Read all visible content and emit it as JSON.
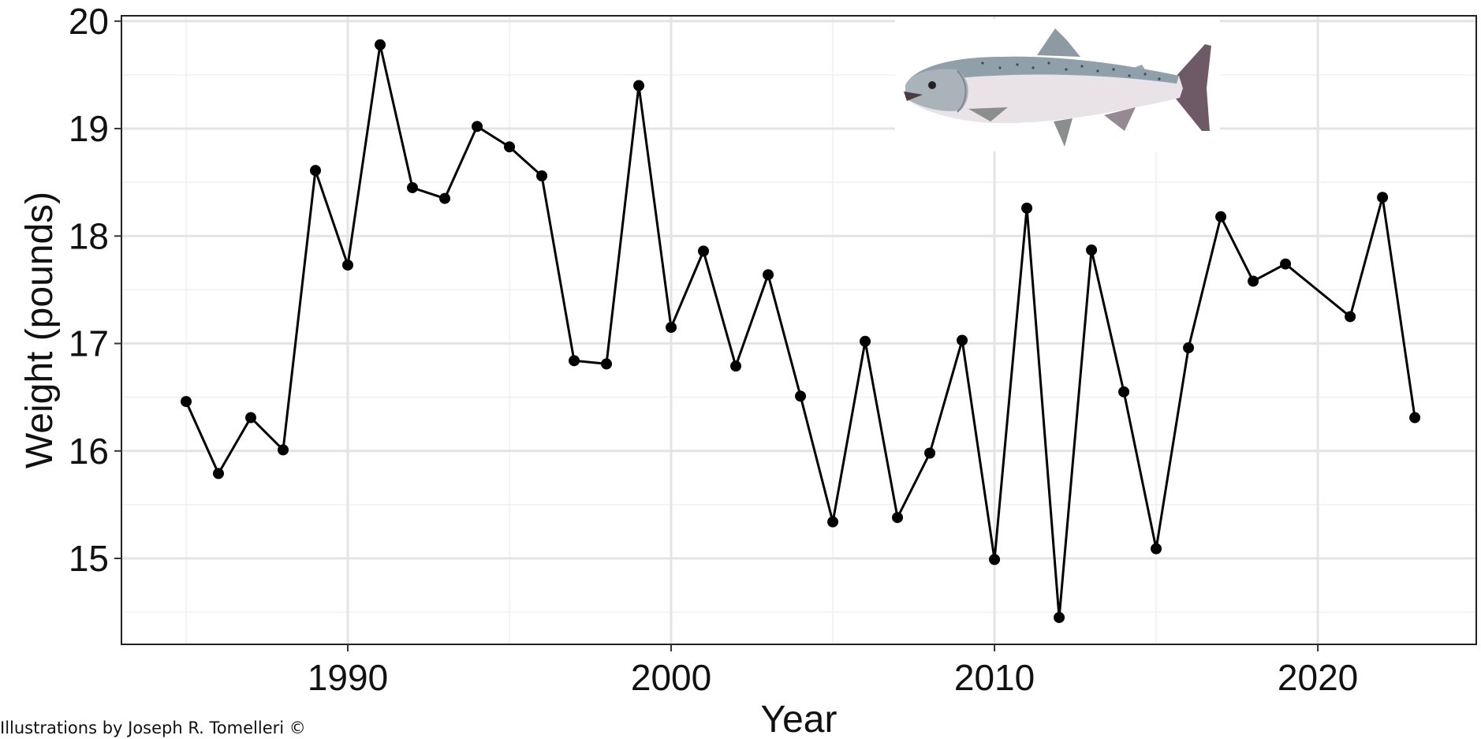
{
  "chart_data": {
    "type": "line",
    "title": "",
    "xlabel": "Year",
    "ylabel": "Weight (pounds)",
    "xlim": [
      1983.0,
      2024.9
    ],
    "ylim": [
      14.2,
      20.05
    ],
    "x_ticks": [
      1990,
      2000,
      2010,
      2020
    ],
    "y_ticks": [
      15,
      16,
      17,
      18,
      19,
      20
    ],
    "x_minor_gridlines": [
      1985,
      1995,
      2005,
      2015
    ],
    "y_minor_gridlines": [
      14.5,
      15.5,
      16.5,
      17.5,
      18.5,
      19.5
    ],
    "grid": true,
    "legend": "none",
    "series": [
      {
        "color": "#000000",
        "points": [
          {
            "x": 1985,
            "y": 16.46
          },
          {
            "x": 1986,
            "y": 15.79
          },
          {
            "x": 1987,
            "y": 16.31
          },
          {
            "x": 1988,
            "y": 16.01
          },
          {
            "x": 1989,
            "y": 18.61
          },
          {
            "x": 1990,
            "y": 17.73
          },
          {
            "x": 1991,
            "y": 19.78
          },
          {
            "x": 1992,
            "y": 18.45
          },
          {
            "x": 1993,
            "y": 18.35
          },
          {
            "x": 1994,
            "y": 19.02
          },
          {
            "x": 1995,
            "y": 18.83
          },
          {
            "x": 1996,
            "y": 18.56
          },
          {
            "x": 1997,
            "y": 16.84
          },
          {
            "x": 1998,
            "y": 16.81
          },
          {
            "x": 1999,
            "y": 19.4
          },
          {
            "x": 2000,
            "y": 17.15
          },
          {
            "x": 2001,
            "y": 17.86
          },
          {
            "x": 2002,
            "y": 16.79
          },
          {
            "x": 2003,
            "y": 17.64
          },
          {
            "x": 2004,
            "y": 16.51
          },
          {
            "x": 2005,
            "y": 15.34
          },
          {
            "x": 2006,
            "y": 17.02
          },
          {
            "x": 2007,
            "y": 15.38
          },
          {
            "x": 2008,
            "y": 15.98
          },
          {
            "x": 2009,
            "y": 17.03
          },
          {
            "x": 2010,
            "y": 14.99
          },
          {
            "x": 2011,
            "y": 18.26
          },
          {
            "x": 2012,
            "y": 14.45
          },
          {
            "x": 2013,
            "y": 17.87
          },
          {
            "x": 2014,
            "y": 16.55
          },
          {
            "x": 2015,
            "y": 15.09
          },
          {
            "x": 2016,
            "y": 16.96
          },
          {
            "x": 2017,
            "y": 18.18
          },
          {
            "x": 2018,
            "y": 17.58
          },
          {
            "x": 2019,
            "y": 17.74
          },
          {
            "x": 2021,
            "y": 17.25
          },
          {
            "x": 2022,
            "y": 18.36
          },
          {
            "x": 2023,
            "y": 16.31
          }
        ]
      }
    ]
  },
  "illustration": {
    "icon": "king-salmon-illustration",
    "colors": [
      "#8fa0ab",
      "#e9e2e7",
      "#6e5a66"
    ]
  },
  "credit": "Illustrations by Joseph R. Tomelleri ©"
}
